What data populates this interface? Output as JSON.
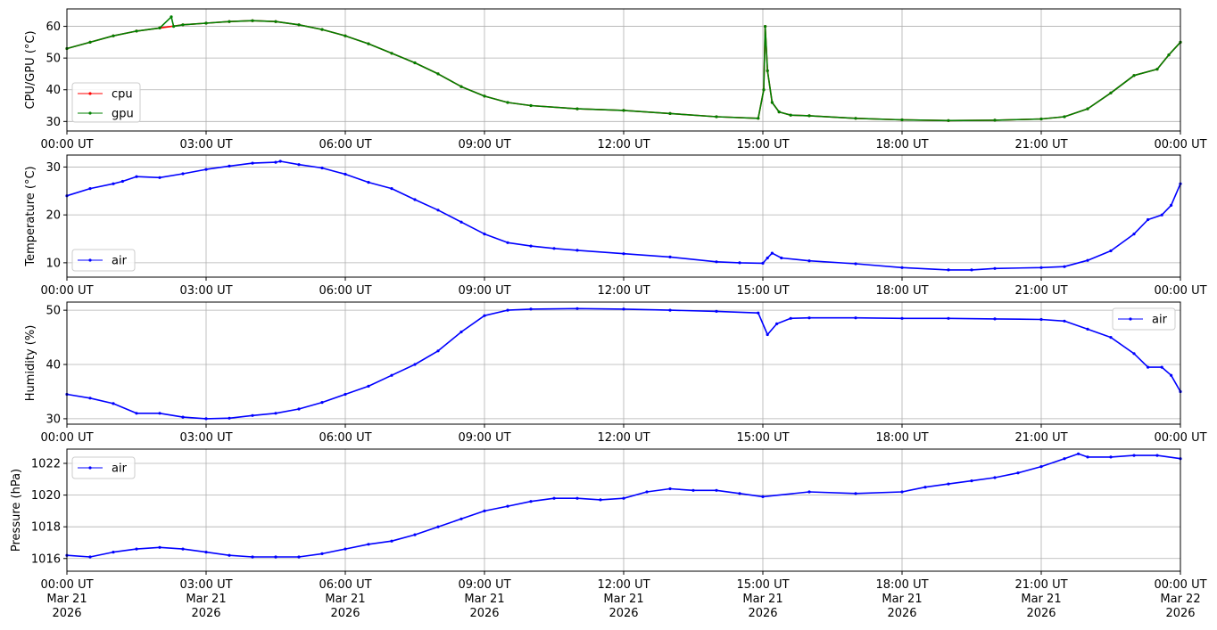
{
  "chart_data": [
    {
      "type": "line",
      "ylabel": "CPU/GPU (°C)",
      "ylim": [
        27,
        65.5
      ],
      "yticks": [
        30,
        40,
        50,
        60
      ],
      "xlim_hours": [
        0,
        24
      ],
      "legend": "lower-left",
      "grid": true,
      "series": [
        {
          "name": "cpu",
          "color": "#ff0000",
          "points": [
            [
              0,
              53
            ],
            [
              0.5,
              55
            ],
            [
              1,
              57
            ],
            [
              1.5,
              58.5
            ],
            [
              2,
              59.5
            ],
            [
              2.5,
              60.5
            ],
            [
              3,
              61
            ],
            [
              3.5,
              61.5
            ],
            [
              4,
              61.8
            ],
            [
              4.5,
              61.5
            ],
            [
              5,
              60.5
            ],
            [
              5.5,
              59
            ],
            [
              6,
              57
            ],
            [
              6.5,
              54.5
            ],
            [
              7,
              51.5
            ],
            [
              7.5,
              48.5
            ],
            [
              8,
              45
            ],
            [
              8.5,
              41
            ],
            [
              9,
              38
            ],
            [
              9.5,
              36
            ],
            [
              10,
              35
            ],
            [
              11,
              34
            ],
            [
              12,
              33.5
            ],
            [
              13,
              32.5
            ],
            [
              14,
              31.5
            ],
            [
              14.9,
              31
            ],
            [
              15.02,
              40
            ],
            [
              15.05,
              60
            ],
            [
              15.1,
              46
            ],
            [
              15.2,
              36
            ],
            [
              15.35,
              33
            ],
            [
              15.6,
              32
            ],
            [
              16,
              31.8
            ],
            [
              17,
              31
            ],
            [
              18,
              30.5
            ],
            [
              19,
              30.3
            ],
            [
              20,
              30.4
            ],
            [
              21,
              30.8
            ],
            [
              21.5,
              31.5
            ],
            [
              22,
              34
            ],
            [
              22.5,
              39
            ],
            [
              23,
              44.5
            ],
            [
              23.5,
              46.5
            ],
            [
              23.75,
              51
            ],
            [
              24,
              55
            ]
          ]
        },
        {
          "name": "gpu",
          "color": "#008000",
          "points": [
            [
              0,
              53
            ],
            [
              0.5,
              55
            ],
            [
              1,
              57
            ],
            [
              1.5,
              58.5
            ],
            [
              2,
              59.5
            ],
            [
              2.25,
              63
            ],
            [
              2.3,
              60
            ],
            [
              2.5,
              60.5
            ],
            [
              3,
              61
            ],
            [
              3.5,
              61.5
            ],
            [
              4,
              61.8
            ],
            [
              4.5,
              61.5
            ],
            [
              5,
              60.5
            ],
            [
              5.5,
              59
            ],
            [
              6,
              57
            ],
            [
              6.5,
              54.5
            ],
            [
              7,
              51.5
            ],
            [
              7.5,
              48.5
            ],
            [
              8,
              45
            ],
            [
              8.5,
              41
            ],
            [
              9,
              38
            ],
            [
              9.5,
              36
            ],
            [
              10,
              35
            ],
            [
              11,
              34
            ],
            [
              12,
              33.5
            ],
            [
              13,
              32.5
            ],
            [
              14,
              31.5
            ],
            [
              14.9,
              31
            ],
            [
              15.02,
              40
            ],
            [
              15.05,
              60
            ],
            [
              15.1,
              46
            ],
            [
              15.2,
              36
            ],
            [
              15.35,
              33
            ],
            [
              15.6,
              32
            ],
            [
              16,
              31.8
            ],
            [
              17,
              31
            ],
            [
              18,
              30.5
            ],
            [
              19,
              30.3
            ],
            [
              20,
              30.4
            ],
            [
              21,
              30.8
            ],
            [
              21.5,
              31.5
            ],
            [
              22,
              34
            ],
            [
              22.5,
              39
            ],
            [
              23,
              44.5
            ],
            [
              23.5,
              46.5
            ],
            [
              23.75,
              51
            ],
            [
              24,
              55
            ]
          ]
        }
      ]
    },
    {
      "type": "line",
      "ylabel": "Temperature (°C)",
      "ylim": [
        7,
        32.5
      ],
      "yticks": [
        10,
        20,
        30
      ],
      "xlim_hours": [
        0,
        24
      ],
      "legend": "lower-left",
      "grid": true,
      "series": [
        {
          "name": "air",
          "color": "#0000ff",
          "points": [
            [
              0,
              24
            ],
            [
              0.5,
              25.5
            ],
            [
              1,
              26.5
            ],
            [
              1.2,
              27
            ],
            [
              1.5,
              28
            ],
            [
              2,
              27.8
            ],
            [
              2.5,
              28.6
            ],
            [
              3,
              29.5
            ],
            [
              3.5,
              30.2
            ],
            [
              4,
              30.8
            ],
            [
              4.5,
              31
            ],
            [
              4.6,
              31.2
            ],
            [
              5,
              30.5
            ],
            [
              5.5,
              29.8
            ],
            [
              6,
              28.5
            ],
            [
              6.5,
              26.8
            ],
            [
              7,
              25.5
            ],
            [
              7.5,
              23.2
            ],
            [
              8,
              21
            ],
            [
              8.5,
              18.5
            ],
            [
              9,
              16
            ],
            [
              9.5,
              14.2
            ],
            [
              10,
              13.5
            ],
            [
              10.5,
              13
            ],
            [
              11,
              12.6
            ],
            [
              12,
              11.9
            ],
            [
              13,
              11.2
            ],
            [
              14,
              10.2
            ],
            [
              14.5,
              10
            ],
            [
              15,
              9.9
            ],
            [
              15.1,
              11
            ],
            [
              15.2,
              12
            ],
            [
              15.4,
              11
            ],
            [
              16,
              10.4
            ],
            [
              17,
              9.8
            ],
            [
              18,
              9
            ],
            [
              19,
              8.5
            ],
            [
              19.5,
              8.5
            ],
            [
              20,
              8.8
            ],
            [
              21,
              9
            ],
            [
              21.5,
              9.2
            ],
            [
              22,
              10.5
            ],
            [
              22.5,
              12.5
            ],
            [
              23,
              16
            ],
            [
              23.3,
              19
            ],
            [
              23.6,
              20
            ],
            [
              23.8,
              22
            ],
            [
              24,
              26.5
            ]
          ]
        }
      ]
    },
    {
      "type": "line",
      "ylabel": "Humidity (%)",
      "ylim": [
        29,
        51.5
      ],
      "yticks": [
        30,
        40,
        50
      ],
      "xlim_hours": [
        0,
        24
      ],
      "legend": "upper-right",
      "grid": true,
      "series": [
        {
          "name": "air",
          "color": "#0000ff",
          "points": [
            [
              0,
              34.5
            ],
            [
              0.5,
              33.8
            ],
            [
              1,
              32.8
            ],
            [
              1.5,
              31
            ],
            [
              2,
              31
            ],
            [
              2.5,
              30.3
            ],
            [
              3,
              30
            ],
            [
              3.5,
              30.1
            ],
            [
              4,
              30.6
            ],
            [
              4.5,
              31
            ],
            [
              5,
              31.8
            ],
            [
              5.5,
              33
            ],
            [
              6,
              34.5
            ],
            [
              6.5,
              36
            ],
            [
              7,
              38
            ],
            [
              7.5,
              40
            ],
            [
              8,
              42.5
            ],
            [
              8.5,
              46
            ],
            [
              9,
              49
            ],
            [
              9.5,
              50
            ],
            [
              10,
              50.2
            ],
            [
              11,
              50.3
            ],
            [
              12,
              50.2
            ],
            [
              13,
              50
            ],
            [
              14,
              49.8
            ],
            [
              14.9,
              49.5
            ],
            [
              15.1,
              45.5
            ],
            [
              15.3,
              47.5
            ],
            [
              15.6,
              48.5
            ],
            [
              16,
              48.6
            ],
            [
              17,
              48.6
            ],
            [
              18,
              48.5
            ],
            [
              19,
              48.5
            ],
            [
              20,
              48.4
            ],
            [
              21,
              48.3
            ],
            [
              21.5,
              48
            ],
            [
              22,
              46.5
            ],
            [
              22.5,
              45
            ],
            [
              23,
              42
            ],
            [
              23.3,
              39.5
            ],
            [
              23.6,
              39.5
            ],
            [
              23.8,
              38
            ],
            [
              24,
              35
            ]
          ]
        }
      ]
    },
    {
      "type": "line",
      "ylabel": "Pressure (hPa)",
      "ylim": [
        1015.2,
        1022.9
      ],
      "yticks": [
        1016,
        1018,
        1020,
        1022
      ],
      "xlim_hours": [
        0,
        24
      ],
      "legend": "upper-left",
      "grid": true,
      "series": [
        {
          "name": "air",
          "color": "#0000ff",
          "points": [
            [
              0,
              1016.2
            ],
            [
              0.5,
              1016.1
            ],
            [
              1,
              1016.4
            ],
            [
              1.5,
              1016.6
            ],
            [
              2,
              1016.7
            ],
            [
              2.5,
              1016.6
            ],
            [
              3,
              1016.4
            ],
            [
              3.5,
              1016.2
            ],
            [
              4,
              1016.1
            ],
            [
              4.5,
              1016.1
            ],
            [
              5,
              1016.1
            ],
            [
              5.5,
              1016.3
            ],
            [
              6,
              1016.6
            ],
            [
              6.5,
              1016.9
            ],
            [
              7,
              1017.1
            ],
            [
              7.5,
              1017.5
            ],
            [
              8,
              1018
            ],
            [
              8.5,
              1018.5
            ],
            [
              9,
              1019
            ],
            [
              9.5,
              1019.3
            ],
            [
              10,
              1019.6
            ],
            [
              10.5,
              1019.8
            ],
            [
              11,
              1019.8
            ],
            [
              11.5,
              1019.7
            ],
            [
              12,
              1019.8
            ],
            [
              12.5,
              1020.2
            ],
            [
              13,
              1020.4
            ],
            [
              13.5,
              1020.3
            ],
            [
              14,
              1020.3
            ],
            [
              14.5,
              1020.1
            ],
            [
              15,
              1019.9
            ],
            [
              16,
              1020.2
            ],
            [
              17,
              1020.1
            ],
            [
              18,
              1020.2
            ],
            [
              18.5,
              1020.5
            ],
            [
              19,
              1020.7
            ],
            [
              19.5,
              1020.9
            ],
            [
              20,
              1021.1
            ],
            [
              20.5,
              1021.4
            ],
            [
              21,
              1021.8
            ],
            [
              21.5,
              1022.3
            ],
            [
              21.8,
              1022.6
            ],
            [
              22,
              1022.4
            ],
            [
              22.5,
              1022.4
            ],
            [
              23,
              1022.5
            ],
            [
              23.5,
              1022.5
            ],
            [
              24,
              1022.3
            ]
          ]
        }
      ]
    }
  ],
  "x_ticks": [
    {
      "label": "00:00 UT",
      "hour": 0
    },
    {
      "label": "03:00 UT",
      "hour": 3
    },
    {
      "label": "06:00 UT",
      "hour": 6
    },
    {
      "label": "09:00 UT",
      "hour": 9
    },
    {
      "label": "12:00 UT",
      "hour": 12
    },
    {
      "label": "15:00 UT",
      "hour": 15
    },
    {
      "label": "18:00 UT",
      "hour": 18
    },
    {
      "label": "21:00 UT",
      "hour": 21
    },
    {
      "label": "00:00 UT",
      "hour": 24
    }
  ],
  "date_ticks": [
    {
      "date": "Mar 21",
      "year": "2026"
    },
    {
      "date": "Mar 21",
      "year": "2026"
    },
    {
      "date": "Mar 21",
      "year": "2026"
    },
    {
      "date": "Mar 21",
      "year": "2026"
    },
    {
      "date": "Mar 21",
      "year": "2026"
    },
    {
      "date": "Mar 21",
      "year": "2026"
    },
    {
      "date": "Mar 21",
      "year": "2026"
    },
    {
      "date": "Mar 21",
      "year": "2026"
    },
    {
      "date": "Mar 22",
      "year": "2026"
    }
  ]
}
